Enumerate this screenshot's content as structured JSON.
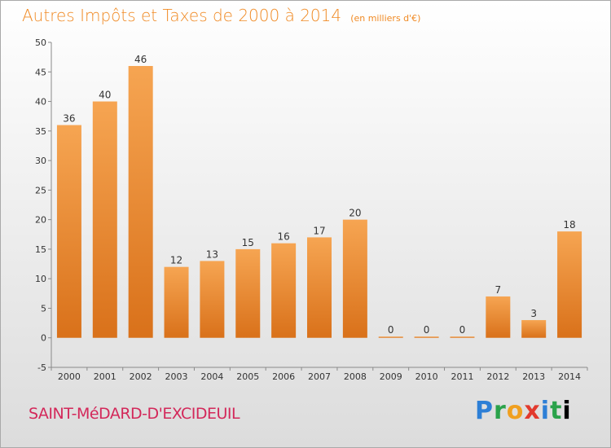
{
  "title": "Autres Impôts et Taxes de 2000 à 2014",
  "unit": "(en milliers d'€)",
  "commune": "SAINT-MéDARD-D'EXCIDEUIL",
  "logo": [
    "P",
    "r",
    "o",
    "x",
    "i",
    "t",
    "i"
  ],
  "colors": {
    "bar_light": "#f6a552",
    "bar_dark": "#d9711a",
    "title": "#f08a24",
    "commune": "#d3285a",
    "axis": "#8a8a8a"
  },
  "chart_data": {
    "type": "bar",
    "title": "Autres Impôts et Taxes de 2000 à 2014",
    "ylabel": "(en milliers d'€)",
    "categories": [
      "2000",
      "2001",
      "2002",
      "2003",
      "2004",
      "2005",
      "2006",
      "2007",
      "2008",
      "2009",
      "2010",
      "2011",
      "2012",
      "2013",
      "2014"
    ],
    "values": [
      36,
      40,
      46,
      12,
      13,
      15,
      16,
      17,
      20,
      0,
      0,
      0,
      7,
      3,
      18
    ],
    "ylim": [
      -5,
      50
    ],
    "yticks": [
      -5,
      0,
      5,
      10,
      15,
      20,
      25,
      30,
      35,
      40,
      45,
      50
    ],
    "grid": false,
    "legend": "none"
  }
}
